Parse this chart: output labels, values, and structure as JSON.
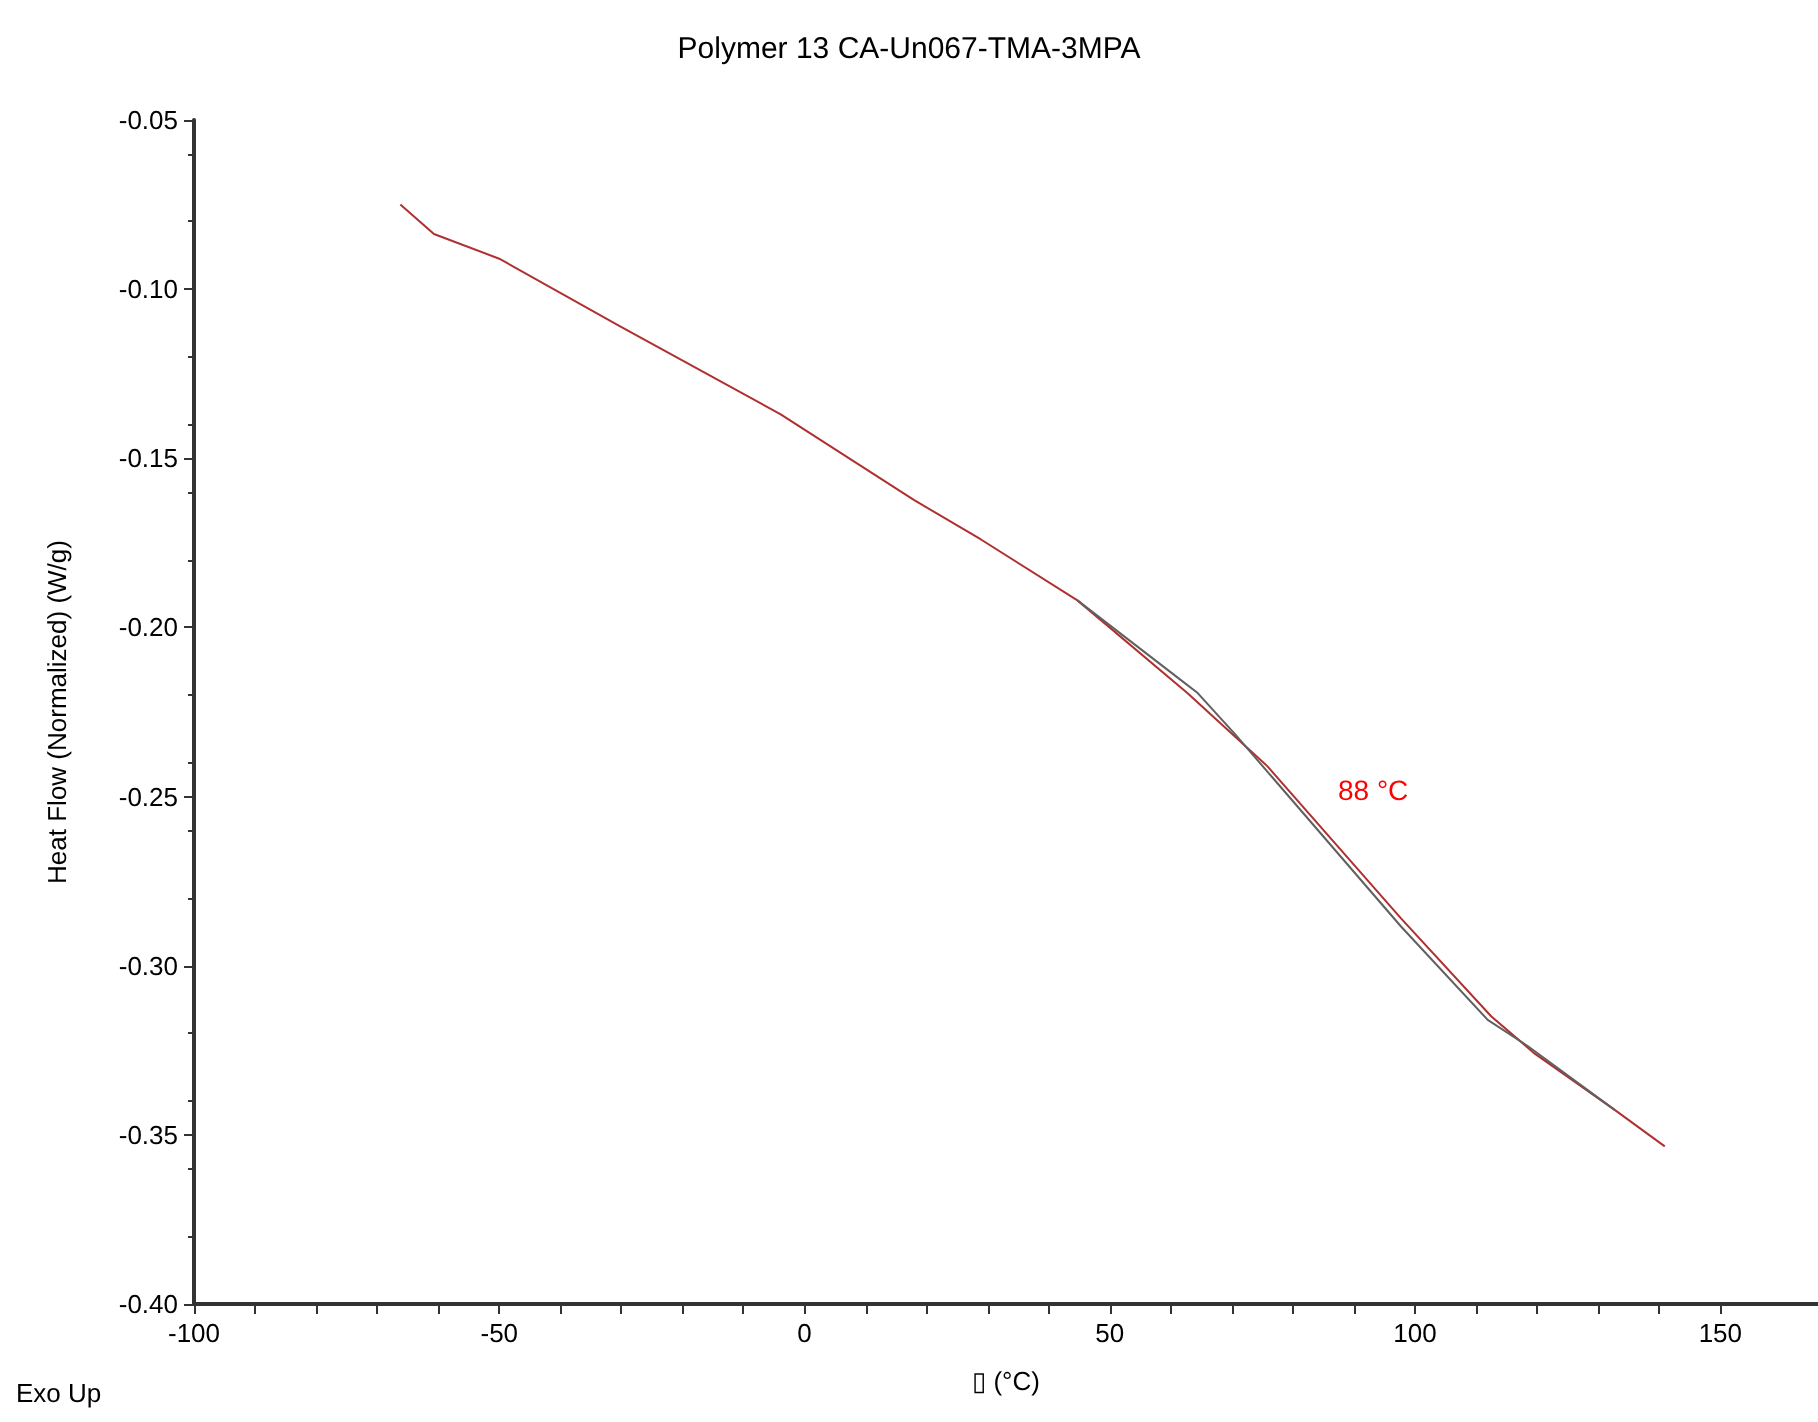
{
  "chart_data": {
    "type": "line",
    "title": "Polymer 13 CA-Un067-TMA-3MPA",
    "xlabel": "▯ (°C)",
    "ylabel": "Heat Flow (Normalized) (W/g)",
    "annotations": [
      "88 °C",
      "Exo Up"
    ],
    "series": [
      {
        "color": "#b03030",
        "x": [
          -66.2,
          -60.7,
          -50,
          -30.2,
          -3.9,
          17.9,
          28.9,
          44.7,
          62.7,
          75.8,
          97.7,
          112.5,
          119.6,
          132.7,
          140.9
        ],
        "values": [
          -0.075,
          -0.0837,
          -0.091,
          -0.111,
          -0.137,
          -0.1623,
          -0.174,
          -0.192,
          -0.2194,
          -0.241,
          -0.286,
          -0.315,
          -0.326,
          -0.3426,
          -0.3534
        ]
      },
      {
        "color": "#606060",
        "x": [
          44.7,
          61.6,
          64.4,
          70.4,
          97.7,
          111.9,
          118.5,
          132.7
        ],
        "values": [
          -0.192,
          -0.2155,
          -0.2194,
          -0.2313,
          -0.2884,
          -0.316,
          -0.3238,
          -0.3426
        ]
      }
    ],
    "xlim": [
      -100,
      166
    ],
    "xticks": [
      -100,
      -50,
      0,
      50,
      100,
      150
    ],
    "ylim": [
      -0.4,
      -0.05
    ],
    "yticks": [
      {
        "value": -0.4,
        "label": "-0.40"
      },
      -0.35,
      {
        "value": -0.3,
        "label": "-0.30"
      },
      -0.25,
      {
        "value": -0.2,
        "label": "-0.20"
      },
      -0.15,
      {
        "value": -0.1,
        "label": "-0.10"
      },
      -0.05
    ],
    "grid": false,
    "marker": "none",
    "line_style": "solid"
  }
}
